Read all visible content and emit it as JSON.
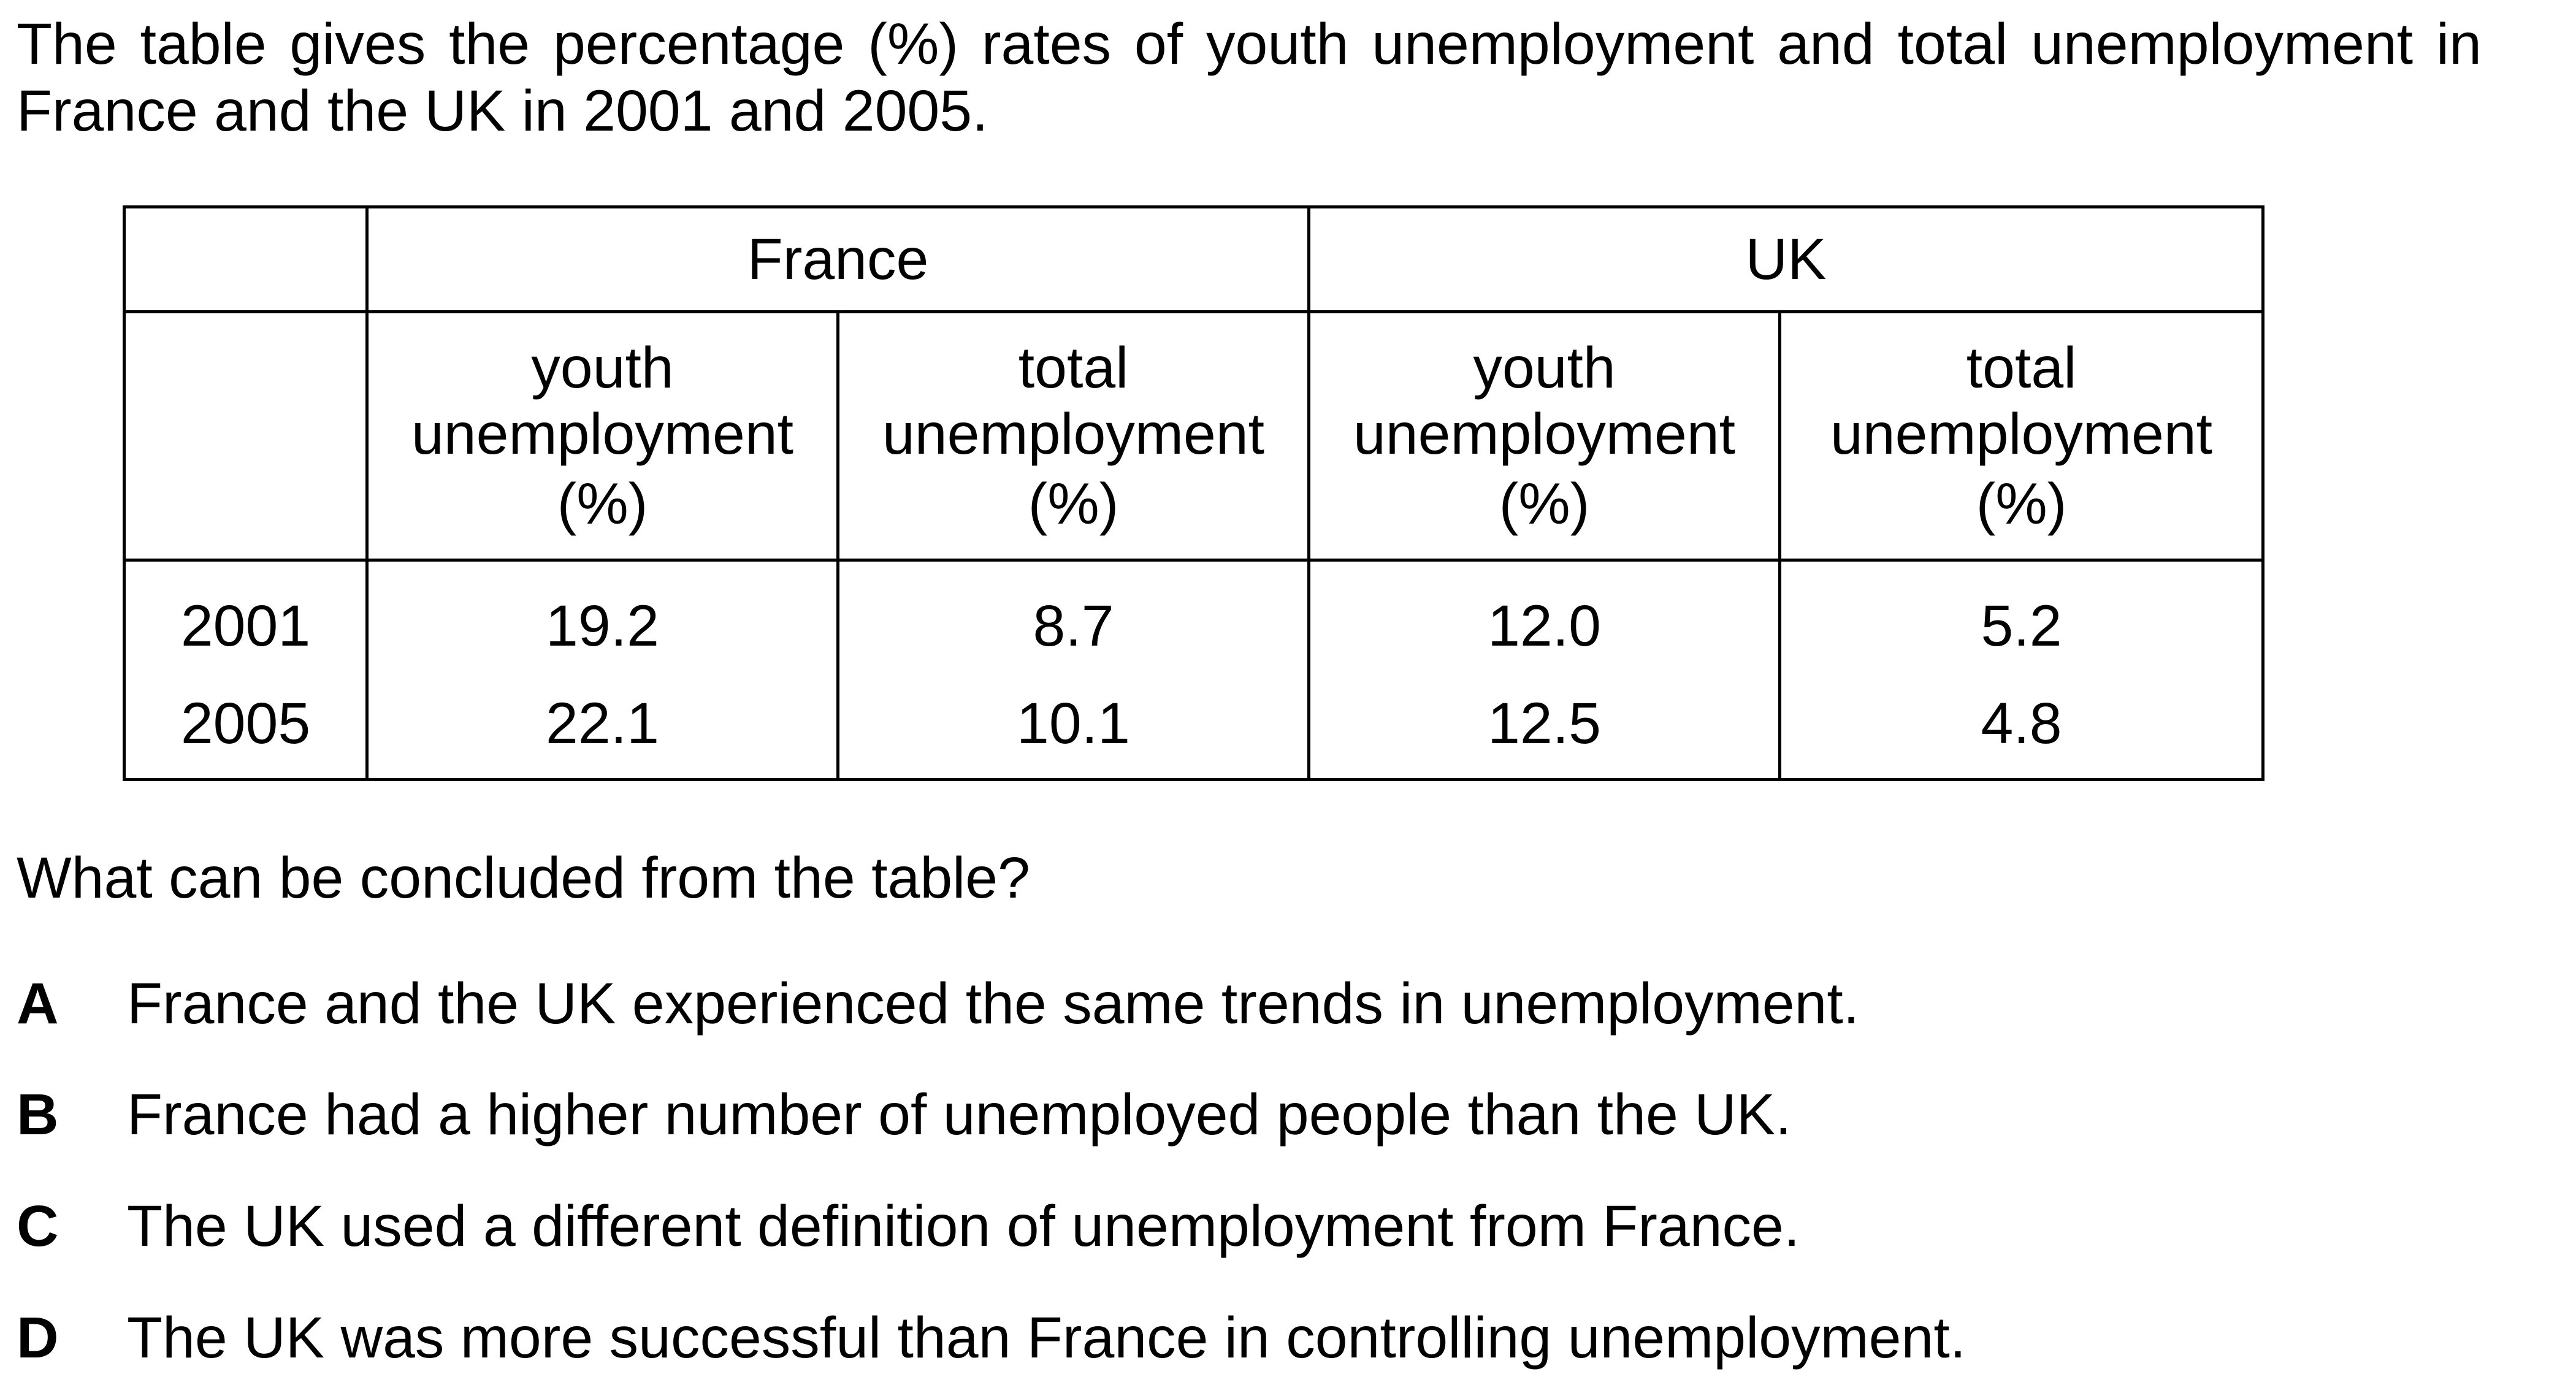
{
  "intro": "The table gives the percentage (%) rates of youth unemployment and total unemployment in France and the UK in 2001 and 2005.",
  "table": {
    "countries": [
      "France",
      "UK"
    ],
    "subheaders": [
      {
        "line1": "youth",
        "line2": "unemployment",
        "unit": "(%)"
      },
      {
        "line1": "total",
        "line2": "unemployment",
        "unit": "(%)"
      },
      {
        "line1": "youth",
        "line2": "unemployment",
        "unit": "(%)"
      },
      {
        "line1": "total",
        "line2": "unemployment",
        "unit": "(%)"
      }
    ],
    "rows": [
      {
        "year": "2001",
        "values": [
          "19.2",
          "8.7",
          "12.0",
          "5.2"
        ]
      },
      {
        "year": "2005",
        "values": [
          "22.1",
          "10.1",
          "12.5",
          "4.8"
        ]
      }
    ]
  },
  "question": "What can be concluded from the table?",
  "options": [
    {
      "letter": "A",
      "text": "France and the UK experienced the same trends in unemployment."
    },
    {
      "letter": "B",
      "text": "France had a higher number of unemployed people than the UK."
    },
    {
      "letter": "C",
      "text": "The UK used a different definition of unemployment from France."
    },
    {
      "letter": "D",
      "text": "The UK was more successful than France in controlling unemployment."
    }
  ]
}
